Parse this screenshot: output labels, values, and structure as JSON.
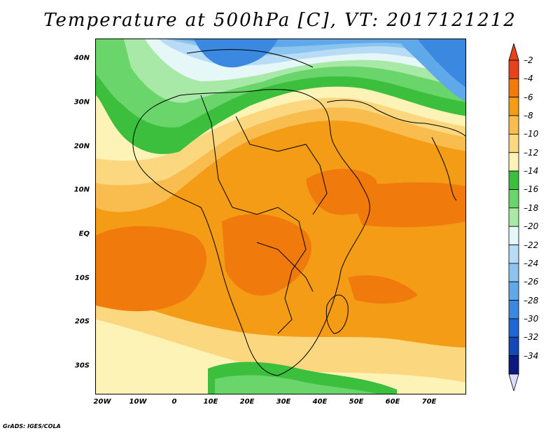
{
  "title": "Temperature at 500hPa [C], VT: 2017121212",
  "credit": "GrADS: IGES/COLA",
  "lat_labels": [
    "40N",
    "30N",
    "20N",
    "10N",
    "EQ",
    "10S",
    "20S",
    "30S"
  ],
  "lon_labels": [
    "20W",
    "10W",
    "0",
    "10E",
    "20E",
    "30E",
    "40E",
    "50E",
    "60E",
    "70E"
  ],
  "colorbar": {
    "labels": [
      "-2",
      "-4",
      "-6",
      "-8",
      "-10",
      "-12",
      "-14",
      "-16",
      "-18",
      "-20",
      "-22",
      "-24",
      "-26",
      "-28",
      "-30",
      "-32",
      "-34"
    ],
    "colors": [
      "#e8421c",
      "#f07a0c",
      "#f59c16",
      "#f9bc4e",
      "#fbd880",
      "#fdf3b6",
      "#3cbf3c",
      "#6ad56a",
      "#a8e9a8",
      "#e6f7f7",
      "#b8dcf5",
      "#8cc4f0",
      "#5fa8ea",
      "#3a88e0",
      "#1f68d4",
      "#1248b8",
      "#0a1a80"
    ],
    "top_arrow_color": "#e8421c",
    "bottom_arrow_color": "#dcdcff"
  },
  "map": {
    "region": "Africa and surroundings",
    "lon_range": [
      -22,
      80
    ],
    "lat_range": [
      -37,
      45
    ],
    "field": "Temperature at 500hPa",
    "units": "C"
  }
}
